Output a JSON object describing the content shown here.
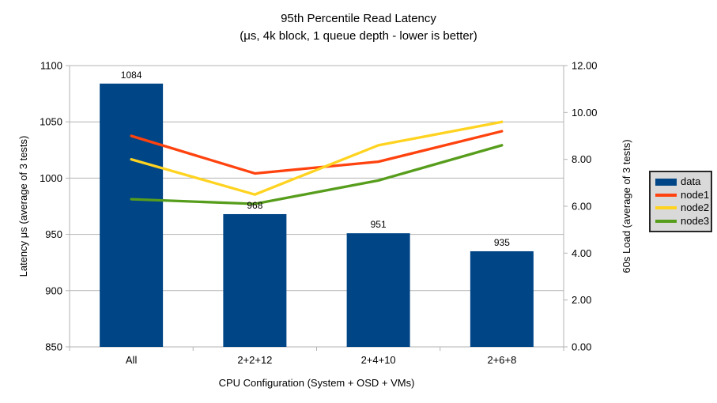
{
  "chart_data": {
    "type": "combo (bar + line)",
    "title": "95th Percentile Read Latency",
    "subtitle": "(μs, 4k block, 1 queue depth - lower is better)",
    "categories": [
      "All",
      "2+2+12",
      "2+4+10",
      "2+6+8"
    ],
    "series": [
      {
        "name": "data",
        "type": "bar",
        "axis": "left",
        "color": "#004586",
        "values": [
          1084,
          968,
          951,
          935
        ],
        "data_labels": [
          "1084",
          "968",
          "951",
          "935"
        ]
      },
      {
        "name": "node1",
        "type": "line",
        "axis": "right",
        "color": "#ff420e",
        "values": [
          9.0,
          7.4,
          7.9,
          9.2
        ]
      },
      {
        "name": "node2",
        "type": "line",
        "axis": "right",
        "color": "#ffd320",
        "values": [
          8.0,
          6.5,
          8.6,
          9.6
        ]
      },
      {
        "name": "node3",
        "type": "line",
        "axis": "right",
        "color": "#579d1c",
        "values": [
          6.3,
          6.1,
          7.1,
          8.6
        ]
      }
    ],
    "left_axis": {
      "label": "Latency μs (average of 3 tests)",
      "min": 850,
      "max": 1100,
      "step": 50,
      "ticks": [
        "850",
        "900",
        "950",
        "1000",
        "1050",
        "1100"
      ]
    },
    "right_axis": {
      "label": "60s Load (average of 3 tests)",
      "min": 0,
      "max": 12,
      "step": 2,
      "ticks": [
        "0.00",
        "2.00",
        "4.00",
        "6.00",
        "8.00",
        "10.00",
        "12.00"
      ]
    },
    "x_axis": {
      "label": "CPU Configuration (System + OSD + VMs)"
    },
    "legend": {
      "position": "right",
      "entries": [
        "data",
        "node1",
        "node2",
        "node3"
      ]
    },
    "grid": "horizontal"
  },
  "colors": {
    "background": "#ffffff",
    "grid": "#b3b3b3",
    "axis": "#b3b3b3",
    "text": "#000000",
    "legend_bg": "#d9d9d9",
    "legend_border": "#262626"
  }
}
